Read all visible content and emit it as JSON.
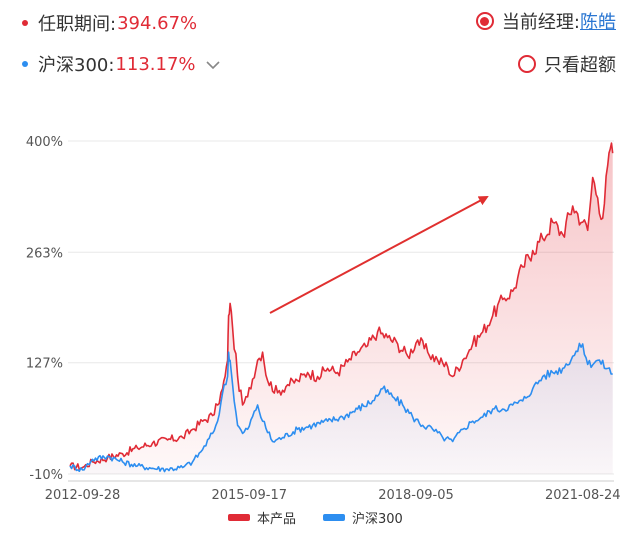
{
  "header": {
    "tenure": {
      "label": "任职期间:",
      "value": "394.67%"
    },
    "benchmark": {
      "label": "沪深300:",
      "value": "113.17%"
    },
    "manager": {
      "label": "当前经理:",
      "name": "陈皓",
      "selected": true
    },
    "excess_label": "只看超额",
    "chevron_icon": "chevron-down-icon"
  },
  "colors": {
    "product": "#e02b36",
    "benchmark": "#2d8ef0",
    "value_text": "#e02b36",
    "link": "#2a76d2",
    "grid": "#e8e8e8",
    "axis_text": "#555555",
    "arrow": "#e0302f"
  },
  "chart_data": {
    "type": "area",
    "y_tick_labels": [
      "400%",
      "263%",
      "127%",
      "-10%"
    ],
    "y_ticks": [
      400,
      263,
      127,
      -10
    ],
    "ylim": [
      -10,
      400
    ],
    "x_tick_labels": [
      "2012-09-28",
      "2015-09-17",
      "2018-09-05",
      "2021-08-24"
    ],
    "x_ticks": [
      0.0,
      0.3333,
      0.6667,
      1.0
    ],
    "xlim": [
      -0.025,
      1.0625
    ],
    "grid": true,
    "legend_position": "bottom",
    "annotation": "red arrow pointing up-right",
    "series": [
      {
        "name": "本产品",
        "color": "#e02b36",
        "points": [
          [
            -0.025,
            0
          ],
          [
            0,
            -2
          ],
          [
            0.02,
            5
          ],
          [
            0.05,
            10
          ],
          [
            0.08,
            15
          ],
          [
            0.11,
            22
          ],
          [
            0.14,
            28
          ],
          [
            0.17,
            32
          ],
          [
            0.2,
            35
          ],
          [
            0.22,
            45
          ],
          [
            0.24,
            55
          ],
          [
            0.26,
            62
          ],
          [
            0.27,
            75
          ],
          [
            0.28,
            95
          ],
          [
            0.285,
            110
          ],
          [
            0.29,
            130
          ],
          [
            0.292,
            185
          ],
          [
            0.295,
            200
          ],
          [
            0.3,
            170
          ],
          [
            0.31,
            110
          ],
          [
            0.32,
            75
          ],
          [
            0.33,
            85
          ],
          [
            0.35,
            130
          ],
          [
            0.36,
            140
          ],
          [
            0.37,
            105
          ],
          [
            0.39,
            90
          ],
          [
            0.41,
            100
          ],
          [
            0.43,
            105
          ],
          [
            0.45,
            115
          ],
          [
            0.47,
            110
          ],
          [
            0.49,
            120
          ],
          [
            0.51,
            115
          ],
          [
            0.53,
            128
          ],
          [
            0.55,
            140
          ],
          [
            0.57,
            148
          ],
          [
            0.59,
            165
          ],
          [
            0.61,
            158
          ],
          [
            0.63,
            150
          ],
          [
            0.65,
            135
          ],
          [
            0.67,
            155
          ],
          [
            0.69,
            140
          ],
          [
            0.71,
            130
          ],
          [
            0.73,
            122
          ],
          [
            0.74,
            110
          ],
          [
            0.76,
            130
          ],
          [
            0.78,
            150
          ],
          [
            0.8,
            165
          ],
          [
            0.82,
            185
          ],
          [
            0.84,
            205
          ],
          [
            0.86,
            215
          ],
          [
            0.88,
            245
          ],
          [
            0.9,
            265
          ],
          [
            0.92,
            280
          ],
          [
            0.94,
            300
          ],
          [
            0.96,
            285
          ],
          [
            0.98,
            320
          ],
          [
            1.0,
            300
          ],
          [
            1.01,
            290
          ],
          [
            1.02,
            355
          ],
          [
            1.03,
            330
          ],
          [
            1.04,
            305
          ],
          [
            1.05,
            370
          ],
          [
            1.055,
            390
          ],
          [
            1.06,
            385
          ]
        ]
      },
      {
        "name": "沪深300",
        "color": "#2d8ef0",
        "points": [
          [
            -0.025,
            0
          ],
          [
            0,
            -5
          ],
          [
            0.02,
            8
          ],
          [
            0.05,
            12
          ],
          [
            0.08,
            5
          ],
          [
            0.11,
            0
          ],
          [
            0.14,
            -3
          ],
          [
            0.17,
            -4
          ],
          [
            0.2,
            -2
          ],
          [
            0.22,
            5
          ],
          [
            0.24,
            20
          ],
          [
            0.26,
            40
          ],
          [
            0.27,
            55
          ],
          [
            0.28,
            90
          ],
          [
            0.29,
            110
          ],
          [
            0.292,
            140
          ],
          [
            0.295,
            130
          ],
          [
            0.3,
            100
          ],
          [
            0.31,
            50
          ],
          [
            0.32,
            40
          ],
          [
            0.33,
            45
          ],
          [
            0.35,
            75
          ],
          [
            0.36,
            55
          ],
          [
            0.38,
            30
          ],
          [
            0.4,
            35
          ],
          [
            0.43,
            45
          ],
          [
            0.46,
            50
          ],
          [
            0.49,
            55
          ],
          [
            0.52,
            60
          ],
          [
            0.55,
            70
          ],
          [
            0.58,
            80
          ],
          [
            0.6,
            95
          ],
          [
            0.62,
            85
          ],
          [
            0.64,
            75
          ],
          [
            0.66,
            60
          ],
          [
            0.68,
            50
          ],
          [
            0.7,
            45
          ],
          [
            0.72,
            35
          ],
          [
            0.74,
            30
          ],
          [
            0.76,
            45
          ],
          [
            0.78,
            55
          ],
          [
            0.8,
            60
          ],
          [
            0.82,
            70
          ],
          [
            0.84,
            70
          ],
          [
            0.86,
            75
          ],
          [
            0.88,
            80
          ],
          [
            0.9,
            95
          ],
          [
            0.92,
            110
          ],
          [
            0.94,
            115
          ],
          [
            0.96,
            120
          ],
          [
            0.98,
            135
          ],
          [
            1.0,
            150
          ],
          [
            1.01,
            125
          ],
          [
            1.03,
            130
          ],
          [
            1.05,
            120
          ],
          [
            1.06,
            113
          ]
        ]
      }
    ]
  }
}
